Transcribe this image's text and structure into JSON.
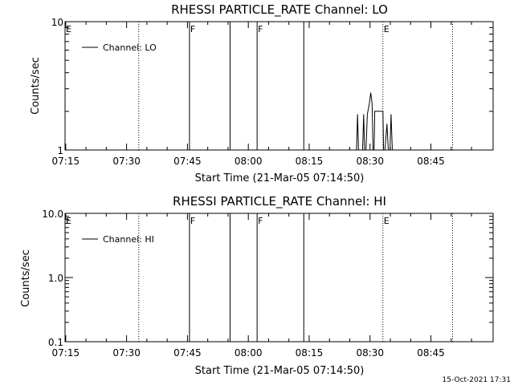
{
  "stamp": "15-Oct-2021 17:31",
  "chart_data": [
    {
      "type": "line",
      "title": "RHESSI PARTICLE_RATE Channel: LO",
      "xlabel": "Start Time (21-Mar-05 07:14:50)",
      "ylabel": "Counts/sec",
      "y_scale": "log",
      "xlim": [
        "07:14:50",
        "09:00:20"
      ],
      "ylim": [
        1,
        10
      ],
      "x_ticks": [
        "07:15",
        "07:30",
        "07:45",
        "08:00",
        "08:15",
        "08:30",
        "08:45"
      ],
      "y_ticks": [
        {
          "value": 1,
          "label": "1"
        },
        {
          "value": 10,
          "label": "10"
        }
      ],
      "grid": false,
      "legend": {
        "placement": "top-left",
        "label": "Channel: LO"
      },
      "events": [
        {
          "time": "07:14:50",
          "style": "solid",
          "label": "E"
        },
        {
          "time": "07:33:00",
          "style": "dotted",
          "label": ""
        },
        {
          "time": "07:45:30",
          "style": "solid",
          "label": "F"
        },
        {
          "time": "07:55:30",
          "style": "solid",
          "label": ""
        },
        {
          "time": "08:02:10",
          "style": "solid",
          "label": "F"
        },
        {
          "time": "08:13:40",
          "style": "solid",
          "label": ""
        },
        {
          "time": "08:33:10",
          "style": "dotted",
          "label": "E"
        },
        {
          "time": "08:50:20",
          "style": "dotted",
          "label": ""
        }
      ],
      "series": [
        {
          "points": [
            [
              "08:26:40",
              1
            ],
            [
              "08:26:55",
              1.9
            ],
            [
              "08:27:10",
              1
            ],
            [
              "08:28:10",
              1
            ],
            [
              "08:28:25",
              1.9
            ],
            [
              "08:28:40",
              1
            ],
            [
              "08:29:00",
              1
            ],
            [
              "08:29:20",
              1.9
            ],
            [
              "08:29:50",
              2.3
            ],
            [
              "08:30:10",
              2.8
            ],
            [
              "08:30:30",
              2.3
            ],
            [
              "08:30:45",
              1
            ],
            [
              "08:31:00",
              1
            ],
            [
              "08:31:10",
              2.0
            ],
            [
              "08:33:10",
              2.0
            ],
            [
              "08:33:20",
              1
            ],
            [
              "08:33:40",
              1
            ],
            [
              "08:34:10",
              1.6
            ],
            [
              "08:34:30",
              1
            ],
            [
              "08:34:55",
              1
            ],
            [
              "08:35:10",
              1.9
            ],
            [
              "08:35:30",
              1
            ]
          ]
        }
      ]
    },
    {
      "type": "line",
      "title": "RHESSI PARTICLE_RATE Channel: HI",
      "xlabel": "Start Time (21-Mar-05 07:14:50)",
      "ylabel": "Counts/sec",
      "y_scale": "log",
      "xlim": [
        "07:14:50",
        "09:00:20"
      ],
      "ylim": [
        0.1,
        10
      ],
      "x_ticks": [
        "07:15",
        "07:30",
        "07:45",
        "08:00",
        "08:15",
        "08:30",
        "08:45"
      ],
      "y_ticks": [
        {
          "value": 0.1,
          "label": "0.1"
        },
        {
          "value": 1,
          "label": "1.0"
        },
        {
          "value": 10,
          "label": "10.0"
        }
      ],
      "grid": false,
      "legend": {
        "placement": "top-left",
        "label": "Channel: HI"
      },
      "events": [
        {
          "time": "07:14:50",
          "style": "solid",
          "label": "E"
        },
        {
          "time": "07:33:00",
          "style": "dotted",
          "label": ""
        },
        {
          "time": "07:45:30",
          "style": "solid",
          "label": "F"
        },
        {
          "time": "07:55:30",
          "style": "solid",
          "label": ""
        },
        {
          "time": "08:02:10",
          "style": "solid",
          "label": "F"
        },
        {
          "time": "08:13:40",
          "style": "solid",
          "label": ""
        },
        {
          "time": "08:33:10",
          "style": "dotted",
          "label": "E"
        },
        {
          "time": "08:50:20",
          "style": "dotted",
          "label": ""
        }
      ],
      "series": [
        {
          "points": []
        }
      ]
    }
  ]
}
